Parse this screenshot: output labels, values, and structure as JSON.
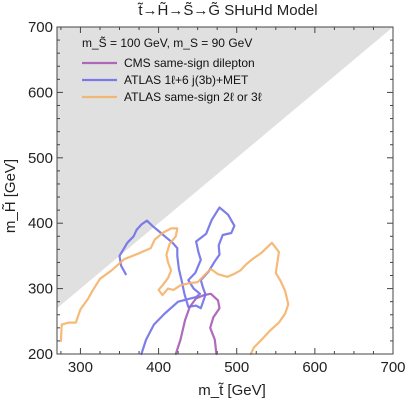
{
  "chart_data": {
    "type": "line",
    "title": "t̃→H̃→S̃→G̃ SHuHd Model",
    "xlabel": "m_t̃ [GeV]",
    "ylabel": "m_H̃ [GeV]",
    "xlim": [
      270,
      700
    ],
    "ylim": [
      200,
      700
    ],
    "xticks": [
      300,
      400,
      500,
      600,
      700
    ],
    "yticks": [
      200,
      300,
      400,
      500,
      600,
      700
    ],
    "grid": false,
    "excluded_region": {
      "description": "m_H̃ > m_t̃",
      "color": "#e0e0e0"
    },
    "annotation": "m_S̃ = 100 GeV, m_S = 90 GeV",
    "legend_position": "top-left",
    "series": [
      {
        "name": "CMS same-sign dilepton",
        "color": "#a65bb4",
        "points": [
          [
            422,
            200
          ],
          [
            428,
            222
          ],
          [
            434,
            252
          ],
          [
            440,
            272
          ],
          [
            448,
            285
          ],
          [
            458,
            290
          ],
          [
            467,
            292
          ],
          [
            476,
            282
          ],
          [
            478,
            270
          ],
          [
            470,
            256
          ],
          [
            466,
            240
          ],
          [
            472,
            222
          ],
          [
            474,
            200
          ]
        ]
      },
      {
        "name": "ATLAS 1ℓ+6 j(3b)+MET",
        "color": "#7070e8",
        "points": [
          [
            378,
            200
          ],
          [
            384,
            222
          ],
          [
            394,
            245
          ],
          [
            408,
            262
          ],
          [
            425,
            280
          ],
          [
            448,
            287
          ],
          [
            453,
            292
          ],
          [
            445,
            300
          ],
          [
            438,
            313
          ],
          [
            447,
            324
          ],
          [
            454,
            344
          ],
          [
            451,
            356
          ],
          [
            448,
            372
          ],
          [
            461,
            384
          ],
          [
            468,
            405
          ],
          [
            478,
            424
          ],
          [
            489,
            413
          ],
          [
            497,
            396
          ],
          [
            493,
            385
          ],
          [
            482,
            382
          ],
          [
            477,
            366
          ],
          [
            478,
            352
          ],
          [
            471,
            340
          ],
          [
            464,
            326
          ],
          [
            454,
            313
          ],
          [
            457,
            301
          ],
          [
            460,
            291
          ],
          [
            457,
            280
          ],
          [
            454,
            270
          ],
          [
            448,
            274
          ],
          [
            438,
            272
          ],
          [
            433,
            292
          ],
          [
            430,
            310
          ],
          [
            426,
            330
          ],
          [
            424,
            350
          ],
          [
            424,
            362
          ],
          [
            418,
            370
          ],
          [
            408,
            380
          ],
          [
            400,
            388
          ],
          [
            392,
            396
          ],
          [
            385,
            404
          ],
          [
            378,
            398
          ],
          [
            372,
            390
          ],
          [
            368,
            380
          ],
          [
            360,
            370
          ],
          [
            356,
            362
          ],
          [
            350,
            350
          ],
          [
            352,
            335
          ],
          [
            358,
            322
          ]
        ]
      },
      {
        "name": "ATLAS same-sign 2ℓ or 3ℓ",
        "color": "#f4b26a",
        "points": [
          [
            275,
            220
          ],
          [
            276,
            245
          ],
          [
            285,
            248
          ],
          [
            294,
            248
          ],
          [
            300,
            268
          ],
          [
            310,
            285
          ],
          [
            315,
            296
          ],
          [
            325,
            315
          ],
          [
            340,
            328
          ],
          [
            356,
            345
          ],
          [
            375,
            354
          ],
          [
            390,
            362
          ],
          [
            395,
            375
          ],
          [
            405,
            385
          ],
          [
            416,
            392
          ],
          [
            424,
            392
          ],
          [
            422,
            380
          ],
          [
            414,
            368
          ],
          [
            410,
            352
          ],
          [
            412,
            340
          ],
          [
            416,
            328
          ],
          [
            412,
            316
          ],
          [
            405,
            305
          ],
          [
            400,
            298
          ],
          [
            405,
            290
          ],
          [
            412,
            300
          ],
          [
            419,
            298
          ],
          [
            428,
            305
          ],
          [
            438,
            308
          ],
          [
            450,
            310
          ],
          [
            460,
            322
          ],
          [
            467,
            330
          ],
          [
            476,
            322
          ],
          [
            488,
            318
          ],
          [
            496,
            322
          ],
          [
            505,
            328
          ],
          [
            512,
            337
          ],
          [
            520,
            345
          ],
          [
            532,
            355
          ],
          [
            538,
            362
          ],
          [
            545,
            370
          ],
          [
            554,
            356
          ],
          [
            552,
            340
          ],
          [
            550,
            324
          ],
          [
            556,
            312
          ],
          [
            562,
            296
          ],
          [
            566,
            276
          ],
          [
            562,
            262
          ],
          [
            554,
            248
          ],
          [
            542,
            235
          ],
          [
            532,
            222
          ],
          [
            522,
            210
          ],
          [
            518,
            200
          ]
        ]
      }
    ]
  }
}
